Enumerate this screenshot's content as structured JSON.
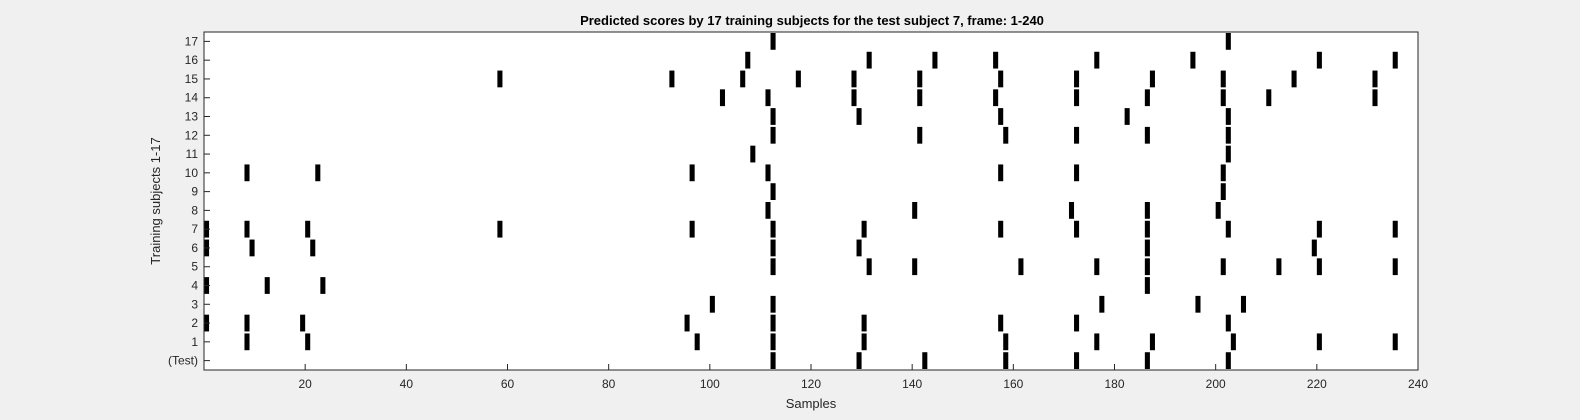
{
  "chart_data": {
    "type": "heatmap",
    "title": "Predicted scores by 17 training subjects for the test subject 7, frame: 1-240",
    "xlabel": "Samples",
    "ylabel": "Training subjects 1-17",
    "xlim": [
      0,
      240
    ],
    "x_ticks": [
      20,
      40,
      60,
      80,
      100,
      120,
      140,
      160,
      180,
      200,
      220,
      240
    ],
    "y_tick_labels": [
      "(Test)",
      "1",
      "2",
      "3",
      "4",
      "5",
      "6",
      "7",
      "8",
      "9",
      "10",
      "11",
      "12",
      "13",
      "14",
      "15",
      "16",
      "17"
    ],
    "colors": {
      "mark": "#000000",
      "background": "#ffffff",
      "figure": "#f0f0f0"
    },
    "rows": [
      {
        "label": "(Test)",
        "x": [
          113,
          130,
          143,
          159,
          173,
          187,
          203
        ]
      },
      {
        "label": "1",
        "x": [
          9,
          21,
          98,
          113,
          131,
          159,
          177,
          188,
          204,
          221,
          236
        ]
      },
      {
        "label": "2",
        "x": [
          1,
          9,
          20,
          96,
          113,
          131,
          158,
          173,
          203
        ]
      },
      {
        "label": "3",
        "x": [
          101,
          113,
          178,
          197,
          206
        ]
      },
      {
        "label": "4",
        "x": [
          1,
          13,
          24,
          187
        ]
      },
      {
        "label": "5",
        "x": [
          113,
          132,
          141,
          162,
          177,
          187,
          202,
          213,
          221,
          236
        ]
      },
      {
        "label": "6",
        "x": [
          1,
          10,
          22,
          113,
          130,
          187,
          220
        ]
      },
      {
        "label": "7",
        "x": [
          1,
          9,
          21,
          59,
          97,
          113,
          131,
          158,
          173,
          187,
          203,
          221,
          236
        ]
      },
      {
        "label": "8",
        "x": [
          112,
          141,
          172,
          187,
          201
        ]
      },
      {
        "label": "9",
        "x": [
          113,
          202
        ]
      },
      {
        "label": "10",
        "x": [
          9,
          23,
          97,
          112,
          158,
          173,
          202
        ]
      },
      {
        "label": "11",
        "x": [
          109,
          203
        ]
      },
      {
        "label": "12",
        "x": [
          113,
          142,
          159,
          173,
          187,
          203
        ]
      },
      {
        "label": "13",
        "x": [
          113,
          130,
          158,
          183,
          203
        ]
      },
      {
        "label": "14",
        "x": [
          103,
          112,
          129,
          142,
          157,
          173,
          187,
          202,
          211,
          232
        ]
      },
      {
        "label": "15",
        "x": [
          59,
          93,
          107,
          118,
          129,
          142,
          158,
          173,
          188,
          202,
          216,
          232
        ]
      },
      {
        "label": "16",
        "x": [
          108,
          132,
          145,
          157,
          177,
          196,
          221,
          236
        ]
      },
      {
        "label": "17",
        "x": [
          113,
          203
        ]
      }
    ]
  }
}
